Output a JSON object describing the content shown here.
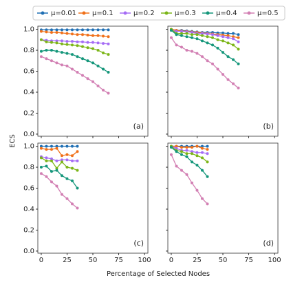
{
  "chart_data": {
    "type": "line",
    "xlabel": "Percentage of Selected Nodes",
    "ylabel": "ECS",
    "legend": [
      {
        "name": "μ=0.01",
        "color": "#1f6fb4"
      },
      {
        "name": "μ=0.1",
        "color": "#f07019"
      },
      {
        "name": "μ=0.2",
        "color": "#a56cf5"
      },
      {
        "name": "μ=0.3",
        "color": "#7cb518"
      },
      {
        "name": "μ=0.4",
        "color": "#14967a"
      },
      {
        "name": "μ=0.5",
        "color": "#d27fb3"
      }
    ],
    "xlim": [
      -3.3,
      103.3
    ],
    "xticks": [
      0,
      25,
      50,
      75,
      100
    ],
    "ylim": [
      -0.02,
      1.03
    ],
    "yticks": [
      {
        "value": 0,
        "label": "0.0"
      },
      0.2,
      0.4,
      0.6,
      0.8,
      {
        "value": 1,
        "label": "1.0"
      }
    ],
    "panels": [
      {
        "annotation": "(a)",
        "x": [
          0,
          5,
          10,
          15,
          20,
          25,
          30,
          35,
          40,
          45,
          50,
          55,
          60,
          65
        ],
        "series": [
          {
            "values": [
              0.995,
              0.995,
              0.995,
              0.995,
              0.995,
              0.995,
              0.995,
              0.995,
              0.995,
              0.995,
              0.995,
              0.995,
              0.995,
              0.995
            ]
          },
          {
            "values": [
              0.98,
              0.975,
              0.97,
              0.97,
              0.965,
              0.96,
              0.955,
              0.95,
              0.95,
              0.945,
              0.94,
              0.94,
              0.935,
              0.93
            ]
          },
          {
            "values": [
              0.9,
              0.895,
              0.89,
              0.89,
              0.89,
              0.885,
              0.885,
              0.88,
              0.88,
              0.875,
              0.875,
              0.87,
              0.865,
              0.86
            ]
          },
          {
            "values": [
              0.9,
              0.88,
              0.875,
              0.87,
              0.86,
              0.855,
              0.85,
              0.845,
              0.835,
              0.825,
              0.815,
              0.8,
              0.775,
              0.76
            ]
          },
          {
            "values": [
              0.79,
              0.8,
              0.8,
              0.79,
              0.78,
              0.77,
              0.76,
              0.74,
              0.72,
              0.7,
              0.68,
              0.65,
              0.62,
              0.59
            ]
          },
          {
            "values": [
              0.74,
              0.72,
              0.7,
              0.68,
              0.66,
              0.65,
              0.62,
              0.59,
              0.56,
              0.53,
              0.5,
              0.46,
              0.42,
              0.39
            ]
          }
        ]
      },
      {
        "annotation": "(b)",
        "x": [
          0,
          5,
          10,
          15,
          20,
          25,
          30,
          35,
          40,
          45,
          50,
          55,
          60,
          65
        ],
        "series": [
          {
            "values": [
              1.0,
              0.99,
              0.99,
              0.985,
              0.98,
              0.975,
              0.97,
              0.97,
              0.97,
              0.965,
              0.965,
              0.96,
              0.96,
              0.95
            ]
          },
          {
            "values": [
              1.0,
              0.99,
              0.985,
              0.98,
              0.975,
              0.97,
              0.965,
              0.96,
              0.955,
              0.95,
              0.945,
              0.94,
              0.93,
              0.92
            ]
          },
          {
            "values": [
              0.99,
              0.98,
              0.98,
              0.975,
              0.97,
              0.96,
              0.96,
              0.955,
              0.95,
              0.94,
              0.93,
              0.92,
              0.91,
              0.88
            ]
          },
          {
            "values": [
              1.0,
              0.96,
              0.96,
              0.96,
              0.95,
              0.95,
              0.94,
              0.93,
              0.92,
              0.9,
              0.89,
              0.87,
              0.85,
              0.81
            ]
          },
          {
            "values": [
              0.99,
              0.95,
              0.94,
              0.93,
              0.92,
              0.91,
              0.89,
              0.87,
              0.85,
              0.82,
              0.78,
              0.74,
              0.71,
              0.67
            ]
          },
          {
            "values": [
              0.92,
              0.85,
              0.83,
              0.8,
              0.79,
              0.77,
              0.74,
              0.7,
              0.67,
              0.62,
              0.57,
              0.52,
              0.48,
              0.44
            ]
          }
        ]
      },
      {
        "annotation": "(c)",
        "x": [
          0,
          5,
          10,
          15,
          20,
          25,
          30,
          35
        ],
        "series": [
          {
            "values": [
              1.0,
              1.0,
              1.0,
              1.0,
              1.0,
              1.0,
              1.0,
              1.0
            ]
          },
          {
            "values": [
              0.98,
              0.97,
              0.97,
              0.98,
              0.91,
              0.92,
              0.91,
              0.95
            ]
          },
          {
            "values": [
              0.9,
              0.89,
              0.88,
              0.86,
              0.87,
              0.87,
              0.86,
              0.86
            ]
          },
          {
            "values": [
              0.89,
              0.86,
              0.86,
              0.79,
              0.85,
              0.8,
              0.79,
              0.77
            ]
          },
          {
            "values": [
              0.8,
              0.81,
              0.76,
              0.77,
              0.72,
              0.69,
              0.67,
              0.6
            ]
          },
          {
            "values": [
              0.74,
              0.71,
              0.66,
              0.62,
              0.54,
              0.5,
              0.45,
              0.41
            ]
          }
        ]
      },
      {
        "annotation": "(d)",
        "x": [
          0,
          5,
          10,
          15,
          20,
          25,
          30,
          35
        ],
        "series": [
          {
            "values": [
              1.0,
              1.0,
              1.0,
              1.0,
              1.0,
              1.0,
              1.0,
              1.0
            ]
          },
          {
            "values": [
              1.0,
              1.0,
              0.99,
              0.99,
              0.99,
              1.0,
              0.98,
              0.97
            ]
          },
          {
            "values": [
              1.0,
              0.98,
              0.96,
              0.96,
              0.95,
              0.94,
              0.94,
              0.93
            ]
          },
          {
            "values": [
              1.0,
              0.96,
              0.95,
              0.93,
              0.93,
              0.91,
              0.89,
              0.85
            ]
          },
          {
            "values": [
              0.99,
              0.95,
              0.92,
              0.9,
              0.85,
              0.82,
              0.77,
              0.71
            ]
          },
          {
            "values": [
              0.92,
              0.81,
              0.77,
              0.73,
              0.65,
              0.58,
              0.5,
              0.45
            ]
          }
        ]
      }
    ]
  }
}
